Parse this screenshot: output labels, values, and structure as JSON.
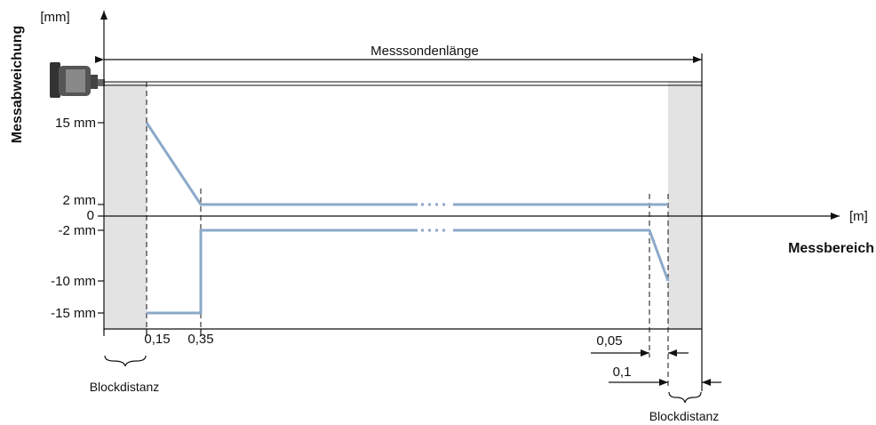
{
  "axis_y": {
    "label": "Messabweichung",
    "unit": "[mm]",
    "ticks": [
      "15 mm",
      "2 mm",
      "0",
      "-2 mm",
      "-10 mm",
      "-15 mm"
    ]
  },
  "axis_x": {
    "label": "Messbereich",
    "unit": "[m]",
    "ticks": [
      "0,15",
      "0,35"
    ]
  },
  "probe_length": "Messsondenlänge",
  "right_dimensions": [
    "0,05",
    "0,1"
  ],
  "block_distance_left": "Blockdistanz",
  "block_distance_right": "Blockdistanz"
}
